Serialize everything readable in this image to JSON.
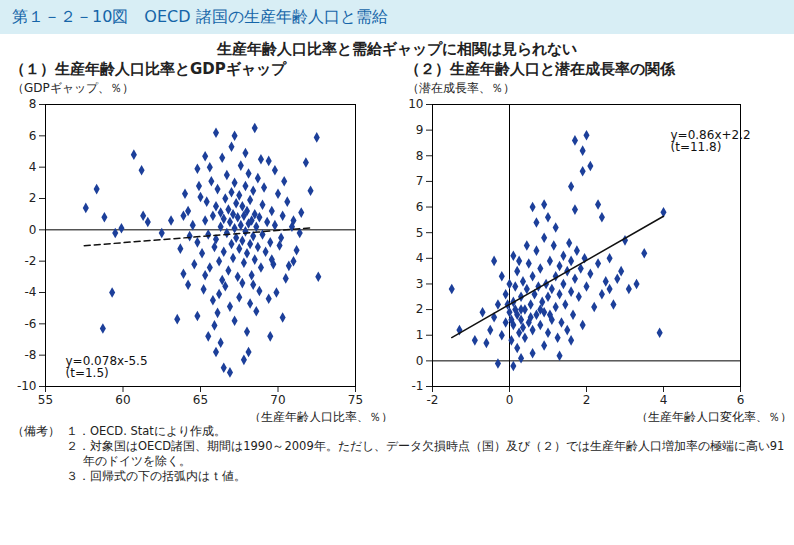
{
  "header": {
    "title": "第１－２－10図　OECD 諸国の生産年齢人口と需給",
    "subtitle": "生産年齢人口比率と需給ギャップに相関は見られない"
  },
  "notes": {
    "label": "（備考）",
    "items": [
      "１．OECD. Statにより作成。",
      "２．対象国はOECD諸国、期間は1990～2009年。ただし、データ欠損時点（国）及び（２）では生産年齢人口増加率の極端に高い91年のドイツを除く。",
      "３．回帰式の下の括弧内はｔ値。"
    ]
  },
  "chart_data": [
    {
      "type": "scatter",
      "title": "（１）生産年齢人口比率とGDPギャップ",
      "y_label": "（GDPギャップ、％）",
      "x_label": "（生産年齢人口比率、％）",
      "xlim": [
        55,
        75
      ],
      "xticks": [
        55,
        60,
        65,
        70,
        75
      ],
      "ylim": [
        -10,
        8
      ],
      "yticks": [
        -10,
        -8,
        -6,
        -4,
        -2,
        0,
        2,
        4,
        6,
        8
      ],
      "color": "#1c3f9a",
      "marker": "diamond",
      "reference_lines": {
        "y": [
          0
        ]
      },
      "trend": {
        "slope": 0.078,
        "intercept": -5.5,
        "x": [
          57.5,
          72.2
        ],
        "line_style": "dashed",
        "label": "y=0.078x-5.5",
        "t_label": "(t=1.5)"
      },
      "x": [
        57.6,
        58.3,
        58.8,
        59.5,
        60.7,
        61.2,
        61.3,
        61.6,
        59.3,
        58.7,
        59.9,
        62.5,
        63.1,
        64.8,
        65.3,
        66.0,
        67.2,
        68.5,
        72.5,
        71.8,
        72.1,
        72.6,
        71.0,
        66.9,
        67.8,
        66.5,
        66.0,
        65.5,
        64.8,
        63.5,
        69.5,
        68.1,
        66.3,
        64.2,
        63.9,
        70.3,
        65.9,
        68.0,
        64.2,
        64.5,
        64.8,
        65.0,
        65.1,
        65.3,
        65.4,
        65.5,
        65.6,
        65.7,
        65.8,
        65.9,
        66.0,
        66.0,
        66.1,
        66.2,
        66.3,
        66.3,
        66.4,
        66.5,
        66.5,
        66.6,
        66.7,
        66.7,
        66.8,
        66.8,
        66.9,
        67.0,
        67.0,
        67.1,
        67.1,
        67.2,
        67.2,
        67.3,
        67.3,
        67.4,
        67.4,
        67.5,
        67.5,
        67.6,
        67.6,
        67.7,
        67.7,
        67.8,
        67.8,
        67.9,
        67.9,
        68.0,
        68.0,
        68.1,
        68.1,
        68.2,
        68.2,
        68.3,
        68.3,
        68.4,
        68.4,
        68.5,
        68.5,
        68.6,
        68.7,
        68.7,
        68.8,
        68.9,
        69.0,
        69.0,
        69.1,
        69.2,
        69.3,
        69.4,
        69.5,
        69.6,
        69.7,
        69.8,
        70.0,
        70.1,
        70.3,
        70.5,
        70.6,
        70.9,
        71.2,
        71.5,
        65.2,
        65.8,
        66.2,
        66.9,
        67.5,
        68.2,
        68.8,
        69.4,
        66.1,
        67.2,
        68.6,
        64.6,
        64.9,
        65.6,
        66.4,
        67.9,
        68.9,
        69.8,
        70.4,
        67.0,
        63.7,
        63.9,
        64.3,
        64.0,
        70.7,
        71.0,
        66.6,
        67.7,
        68.4,
        69.9,
        65.3,
        70.2,
        71.4,
        69.6
      ],
      "values": [
        1.4,
        2.6,
        0.8,
        -0.2,
        4.8,
        3.8,
        0.9,
        0.5,
        -4.0,
        -6.3,
        0.1,
        -0.2,
        0.6,
        3.9,
        4.7,
        6.2,
        6.0,
        6.5,
        5.9,
        4.3,
        2.5,
        -3.0,
        -2.0,
        -9.1,
        -8.3,
        -8.8,
        -7.8,
        -6.8,
        -5.5,
        -5.7,
        -6.8,
        -7.8,
        -7.2,
        -3.5,
        -2.8,
        -5.6,
        -6.1,
        -6.5,
        1.2,
        0.3,
        -0.8,
        2.1,
        -1.5,
        0.6,
        1.8,
        -0.3,
        -2.4,
        3.1,
        0.9,
        -1.1,
        1.5,
        -0.6,
        2.6,
        -2.0,
        0.2,
        1.1,
        -3.2,
        0.7,
        -1.4,
        2.0,
        3.5,
        -0.2,
        1.3,
        -2.6,
        0.5,
        -0.9,
        2.4,
        1.0,
        -1.8,
        0.1,
        3.0,
        -0.5,
        1.7,
        -3.0,
        0.8,
        2.2,
        -1.2,
        0.3,
        4.1,
        -0.7,
        1.5,
        -2.1,
        0.9,
        2.8,
        -0.1,
        1.2,
        -1.5,
        0.4,
        3.6,
        -0.9,
        1.9,
        -2.9,
        0.6,
        2.5,
        -0.4,
        1.0,
        -1.9,
        0.2,
        3.3,
        -1.1,
        0.8,
        -2.4,
        1.6,
        -0.3,
        2.7,
        -1.4,
        0.5,
        4.4,
        -0.8,
        1.2,
        -2.2,
        0.3,
        2.3,
        -1.0,
        0.9,
        -3.1,
        1.8,
        0.2,
        -1.3,
        1.1,
        -3.8,
        -4.5,
        -4.1,
        -4.9,
        -4.3,
        -4.7,
        -3.9,
        -4.4,
        -5.3,
        -5.8,
        -5.2,
        -2.2,
        2.8,
        4.0,
        4.6,
        4.9,
        4.5,
        3.8,
        3.1,
        5.3,
        -1.2,
        0.9,
        -0.4,
        2.3,
        -2.3,
        0.6,
        -3.6,
        -3.4,
        -3.5,
        -4.0,
        -2.9,
        -0.5,
        -0.2,
        -1.9
      ]
    },
    {
      "type": "scatter",
      "title": "（２）生産年齢人口と潜在成長率の関係",
      "y_label": "（潜在成長率、％）",
      "x_label": "（生産年齢人口変化率、％）",
      "xlim": [
        -2,
        6
      ],
      "xticks": [
        -2,
        0,
        2,
        4,
        6
      ],
      "ylim": [
        -1,
        10
      ],
      "yticks": [
        -1,
        0,
        1,
        2,
        3,
        4,
        5,
        6,
        7,
        8,
        9,
        10
      ],
      "color": "#1c3f9a",
      "marker": "diamond",
      "reference_lines": {
        "x": [
          0
        ],
        "y": [
          0
        ]
      },
      "trend": {
        "slope": 0.86,
        "intercept": 2.2,
        "x": [
          -1.5,
          4.0
        ],
        "line_style": "solid",
        "label": "y=0.86x+2.2",
        "t_label": "(t=11.8)"
      },
      "x": [
        -1.5,
        -1.3,
        -0.9,
        -0.3,
        0.1,
        0.3,
        1.7,
        1.9,
        2.0,
        2.1,
        1.6,
        2.3,
        2.4,
        1.7,
        3.0,
        3.5,
        4.0,
        3.9,
        2.8,
        2.6,
        3.3,
        0.9,
        0.6,
        0.1,
        -0.4,
        -0.2,
        1.2,
        0.7,
        1.9,
        -0.5,
        -0.4,
        -0.3,
        -0.2,
        -0.1,
        -0.1,
        0.0,
        0.0,
        0.05,
        0.1,
        0.1,
        0.15,
        0.2,
        0.2,
        0.25,
        0.3,
        0.3,
        0.35,
        0.4,
        0.4,
        0.45,
        0.5,
        0.5,
        0.55,
        0.6,
        0.6,
        0.65,
        0.7,
        0.7,
        0.75,
        0.8,
        0.8,
        0.85,
        0.9,
        0.9,
        0.95,
        1.0,
        1.0,
        1.05,
        1.1,
        1.1,
        1.15,
        1.2,
        1.2,
        1.25,
        1.3,
        1.3,
        1.35,
        1.4,
        1.4,
        1.45,
        1.5,
        1.5,
        1.55,
        1.6,
        1.6,
        1.65,
        1.7,
        1.75,
        1.8,
        1.85,
        1.9,
        1.95,
        2.0,
        2.1,
        2.2,
        2.3,
        2.4,
        2.5,
        2.6,
        2.7,
        2.9,
        3.1,
        0.2,
        0.6,
        0.9,
        1.6,
        1.3,
        -0.6,
        -0.7,
        0.45,
        0.25,
        1.0,
        0.15,
        0.35,
        0.55,
        0.8,
        1.05,
        0.05,
        -0.05,
        0.3
      ],
      "values": [
        2.8,
        1.2,
        0.8,
        -0.1,
        -0.2,
        0.1,
        8.6,
        8.2,
        8.8,
        7.6,
        6.8,
        6.1,
        5.6,
        5.9,
        4.7,
        4.2,
        5.8,
        1.1,
        3.2,
        2.8,
        3.0,
        6.1,
        6.0,
        4.1,
        3.9,
        3.3,
        5.2,
        5.4,
        7.4,
        1.2,
        1.7,
        2.2,
        1.0,
        1.5,
        2.6,
        1.9,
        3.0,
        0.8,
        2.3,
        1.4,
        2.9,
        1.8,
        3.5,
        1.1,
        2.5,
        1.6,
        3.1,
        2.0,
        0.9,
        2.8,
        1.5,
        3.8,
        2.2,
        1.2,
        3.3,
        2.6,
        1.8,
        4.3,
        2.9,
        1.4,
        3.6,
        2.3,
        1.9,
        4.8,
        3.0,
        2.5,
        1.1,
        3.9,
        2.8,
        1.6,
        4.5,
        3.3,
        2.1,
        0.9,
        3.7,
        2.6,
        1.5,
        4.1,
        3.0,
        2.2,
        3.5,
        1.2,
        4.6,
        2.7,
        3.9,
        1.8,
        3.2,
        4.3,
        2.5,
        3.6,
        1.4,
        4.0,
        2.9,
        3.4,
        2.1,
        3.8,
        2.6,
        3.1,
        4.0,
        2.2,
        3.5,
        2.8,
        0.5,
        0.3,
        0.6,
        0.8,
        0.2,
        0.7,
        1.9,
        4.5,
        3.9,
        5.6,
        2.0,
        1.3,
        1.7,
        2.0,
        1.8,
        1.6,
        2.2,
        2.0
      ]
    }
  ]
}
